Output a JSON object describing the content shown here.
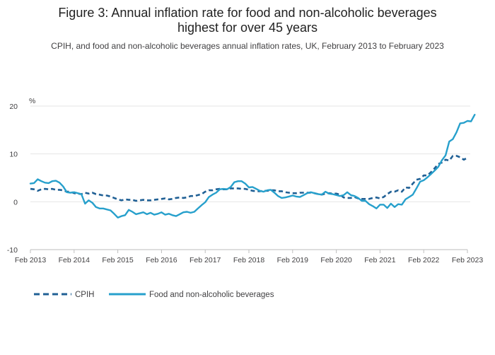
{
  "title_line1": "Figure 3: Annual inflation rate for food and non-alcoholic beverages",
  "title_line2": "highest for over 45 years",
  "subtitle": "CPIH, and food and non-alcoholic beverages annual inflation rates, UK, February 2013 to February 2023",
  "colors": {
    "cpih": "#206095",
    "food": "#27a0cc",
    "grid": "#e6e6e6",
    "axis": "#bebebe",
    "text": "#414042"
  },
  "chart_data": {
    "type": "line",
    "title": "Figure 3: Annual inflation rate for food and non-alcoholic beverages highest for over 45 years",
    "ylabel": "%",
    "ylim": [
      -10,
      20
    ],
    "yticks": [
      -10,
      0,
      10,
      20
    ],
    "xlim": [
      0,
      120
    ],
    "xticks": [
      {
        "label": "Feb 2013",
        "index": 0
      },
      {
        "label": "Feb 2014",
        "index": 12
      },
      {
        "label": "Feb 2015",
        "index": 24
      },
      {
        "label": "Feb 2016",
        "index": 36
      },
      {
        "label": "Feb 2017",
        "index": 48
      },
      {
        "label": "Feb 2018",
        "index": 60
      },
      {
        "label": "Feb 2019",
        "index": 72
      },
      {
        "label": "Feb 2020",
        "index": 84
      },
      {
        "label": "Feb 2021",
        "index": 96
      },
      {
        "label": "Feb 2022",
        "index": 108
      },
      {
        "label": "Feb 2023",
        "index": 120
      }
    ],
    "x_description": "monthly index from Feb 2013 (0) to Feb 2023 (120)",
    "series": [
      {
        "name": "CPIH",
        "style": "dashed",
        "values": [
          2.7,
          2.6,
          2.3,
          2.6,
          2.7,
          2.6,
          2.7,
          2.5,
          2.5,
          2.4,
          2.1,
          2.1,
          1.8,
          1.7,
          1.6,
          1.9,
          1.7,
          1.9,
          1.6,
          1.5,
          1.3,
          1.3,
          1.1,
          0.8,
          0.5,
          0.3,
          0.5,
          0.4,
          0.4,
          0.2,
          0.3,
          0.4,
          0.3,
          0.3,
          0.4,
          0.5,
          0.6,
          0.7,
          0.5,
          0.6,
          0.8,
          0.9,
          0.8,
          0.9,
          1.2,
          1.2,
          1.4,
          1.6,
          2.1,
          2.4,
          2.4,
          2.6,
          2.7,
          2.6,
          2.6,
          2.8,
          2.8,
          2.8,
          2.7,
          2.7,
          2.5,
          2.3,
          2.2,
          2.2,
          2.3,
          2.3,
          2.4,
          2.4,
          2.2,
          2.2,
          2.0,
          1.9,
          1.8,
          1.8,
          1.9,
          1.9,
          1.9,
          1.9,
          1.8,
          1.6,
          1.5,
          1.7,
          1.8,
          1.7,
          1.7,
          1.5,
          0.9,
          0.8,
          0.8,
          1.0,
          0.7,
          0.6,
          0.6,
          0.6,
          0.8,
          0.9,
          0.7,
          1.0,
          1.6,
          2.1,
          2.1,
          2.4,
          2.1,
          3.0,
          2.9,
          3.8,
          4.6,
          4.8,
          5.5,
          5.5,
          6.2,
          7.0,
          7.9,
          8.2,
          8.8,
          8.6,
          9.6,
          9.6,
          9.3,
          8.8,
          9.2
        ]
      },
      {
        "name": "Food and non-alcoholic beverages",
        "style": "solid",
        "values": [
          3.8,
          3.9,
          4.7,
          4.3,
          4.0,
          3.9,
          4.3,
          4.4,
          4.0,
          3.2,
          2.0,
          1.9,
          2.0,
          1.8,
          1.6,
          -0.4,
          0.3,
          -0.2,
          -1.1,
          -1.4,
          -1.4,
          -1.6,
          -1.8,
          -2.5,
          -3.3,
          -3.0,
          -2.8,
          -1.7,
          -2.1,
          -2.6,
          -2.4,
          -2.2,
          -2.6,
          -2.3,
          -2.7,
          -2.5,
          -2.2,
          -2.7,
          -2.5,
          -2.8,
          -3.0,
          -2.6,
          -2.2,
          -2.1,
          -2.3,
          -2.1,
          -1.4,
          -0.7,
          -0.1,
          1.0,
          1.5,
          1.9,
          2.6,
          2.7,
          2.6,
          3.1,
          4.1,
          4.3,
          4.3,
          3.8,
          3.0,
          3.1,
          2.7,
          2.3,
          2.1,
          2.4,
          2.5,
          1.9,
          1.2,
          0.8,
          0.9,
          1.1,
          1.3,
          1.1,
          1.0,
          1.4,
          1.8,
          2.0,
          1.8,
          1.6,
          1.5,
          2.1,
          1.7,
          1.6,
          1.4,
          1.2,
          1.4,
          2.0,
          1.4,
          1.2,
          0.8,
          0.2,
          0.2,
          -0.5,
          -0.9,
          -1.4,
          -0.6,
          -0.6,
          -1.3,
          -0.4,
          -1.1,
          -0.5,
          -0.6,
          0.5,
          1.0,
          1.5,
          2.8,
          4.2,
          4.5,
          5.1,
          5.8,
          6.5,
          7.3,
          8.7,
          9.7,
          12.6,
          13.1,
          14.5,
          16.4,
          16.5,
          16.9,
          16.8,
          18.2
        ]
      }
    ],
    "legend": [
      "CPIH",
      "Food and non-alcoholic beverages"
    ]
  }
}
